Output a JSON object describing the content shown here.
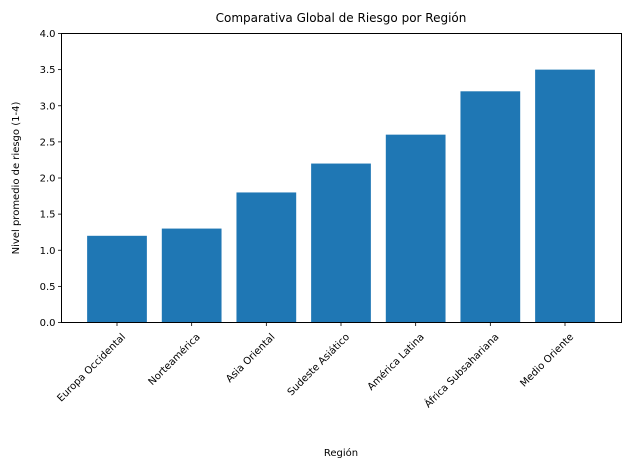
{
  "chart_data": {
    "type": "bar",
    "title": "Comparativa Global de Riesgo por Región",
    "xlabel": "Región",
    "ylabel": "Nivel promedio de riesgo (1-4)",
    "categories": [
      "Europa Occidental",
      "Norteamérica",
      "Asia Oriental",
      "Sudeste Asiático",
      "América Latina",
      "África Subsahariana",
      "Medio Oriente"
    ],
    "values": [
      1.2,
      1.3,
      1.8,
      2.2,
      2.6,
      3.2,
      3.5
    ],
    "ylim": [
      0,
      4.0
    ],
    "yticks": [
      "0.0",
      "0.5",
      "1.0",
      "1.5",
      "2.0",
      "2.5",
      "3.0",
      "3.5",
      "4.0"
    ],
    "grid": false,
    "legend": null,
    "bar_color": "#1f77b4",
    "xtick_rotation": 45
  }
}
